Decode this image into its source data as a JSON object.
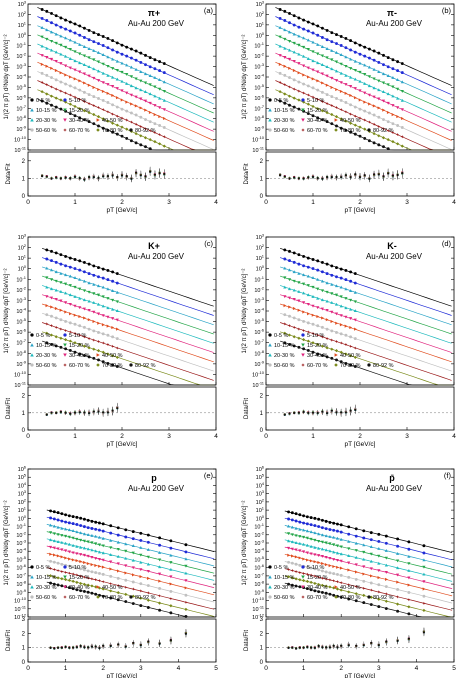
{
  "figure": {
    "colors": [
      "#000000",
      "#1f2bd6",
      "#2aa3c6",
      "#23a548",
      "#1fb9bd",
      "#e0257e",
      "#e04d1f",
      "#c0c0c0",
      "#9a1a1a",
      "#7a8a1a",
      "#111111"
    ],
    "legend": [
      "0-5 %",
      "5-10 %",
      "10-15 %",
      "15-20 %",
      "20-30 %",
      "30-40 %",
      "40-50 %",
      "50-60 %",
      "60-70 %",
      "70-80 %",
      "80-92 %"
    ],
    "markers": [
      "circle",
      "circle",
      "triangle-up",
      "triangle-down",
      "triangle-up",
      "triangle-down",
      "triangle-right",
      "circle",
      "star",
      "diamond",
      "circle"
    ],
    "system": "Au-Au 200 GeV",
    "ylabel_top": "1/(2 π pT) d²N/dy dpT [GeV/c]⁻²",
    "ylabel_bottom": "Data/Fit",
    "xlabel": "pT [GeV/c]"
  },
  "chart_data": [
    {
      "type": "scatter",
      "panel": "(a)",
      "particle": "π+",
      "ylog": true,
      "ylim": [
        1e-11,
        1000.0
      ],
      "xlim": [
        0,
        4
      ],
      "ratio_ylim": [
        0,
        2.5
      ],
      "series_template": "centrality",
      "x": [
        0.3,
        0.4,
        0.5,
        0.6,
        0.7,
        0.8,
        0.9,
        1.0,
        1.1,
        1.2,
        1.3,
        1.4,
        1.5,
        1.6,
        1.7,
        1.8,
        1.9,
        2.0,
        2.1,
        2.2,
        2.3,
        2.4,
        2.5,
        2.6,
        2.7,
        2.8,
        2.9
      ],
      "y0_top": 300,
      "slope": -4.4,
      "step": 3.0,
      "ratio": [
        1.15,
        1.1,
        1.0,
        1.05,
        1.0,
        1.05,
        1.0,
        1.1,
        1.0,
        0.95,
        1.05,
        1.1,
        1.0,
        1.15,
        1.1,
        1.2,
        1.05,
        1.2,
        1.1,
        1.0,
        1.3,
        1.2,
        1.1,
        1.4,
        1.2,
        1.3,
        1.25
      ]
    },
    {
      "type": "scatter",
      "panel": "(b)",
      "particle": "π-",
      "ylog": true,
      "ylim": [
        1e-11,
        1000.0
      ],
      "xlim": [
        0,
        4
      ],
      "ratio_ylim": [
        0,
        2.5
      ],
      "x": [
        0.3,
        0.4,
        0.5,
        0.6,
        0.7,
        0.8,
        0.9,
        1.0,
        1.1,
        1.2,
        1.3,
        1.4,
        1.5,
        1.6,
        1.7,
        1.8,
        1.9,
        2.0,
        2.1,
        2.2,
        2.3,
        2.4,
        2.5,
        2.6,
        2.7,
        2.8,
        2.9
      ],
      "y0_top": 300,
      "slope": -4.4,
      "step": 3.0,
      "ratio": [
        1.2,
        1.1,
        1.0,
        1.05,
        1.0,
        1.0,
        1.05,
        1.1,
        1.0,
        1.0,
        1.05,
        1.1,
        1.05,
        1.1,
        1.15,
        1.1,
        1.2,
        1.1,
        1.15,
        1.0,
        1.2,
        1.25,
        1.1,
        1.3,
        1.15,
        1.2,
        1.3
      ]
    },
    {
      "type": "scatter",
      "panel": "(c)",
      "particle": "K+",
      "ylog": true,
      "ylim": [
        1e-11,
        1000.0
      ],
      "xlim": [
        0,
        4
      ],
      "ratio_ylim": [
        0,
        2.5
      ],
      "x": [
        0.4,
        0.5,
        0.6,
        0.7,
        0.8,
        0.9,
        1.0,
        1.1,
        1.2,
        1.3,
        1.4,
        1.5,
        1.6,
        1.7,
        1.8,
        1.9
      ],
      "y0_top": 60,
      "slope": -3.3,
      "step": 3.0,
      "ratio": [
        0.9,
        1.0,
        1.0,
        1.05,
        1.0,
        0.95,
        1.0,
        1.05,
        1.0,
        1.0,
        1.05,
        1.1,
        1.0,
        1.05,
        1.1,
        1.3
      ]
    },
    {
      "type": "scatter",
      "panel": "(d)",
      "particle": "K-",
      "ylog": true,
      "ylim": [
        1e-11,
        1000.0
      ],
      "xlim": [
        0,
        4
      ],
      "ratio_ylim": [
        0,
        2.5
      ],
      "x": [
        0.4,
        0.5,
        0.6,
        0.7,
        0.8,
        0.9,
        1.0,
        1.1,
        1.2,
        1.3,
        1.4,
        1.5,
        1.6,
        1.7,
        1.8,
        1.9
      ],
      "y0_top": 60,
      "slope": -3.3,
      "step": 3.0,
      "ratio": [
        0.9,
        0.95,
        1.0,
        1.0,
        1.05,
        1.0,
        1.0,
        1.0,
        1.05,
        1.0,
        1.1,
        1.05,
        1.0,
        1.05,
        1.1,
        1.2
      ]
    },
    {
      "type": "scatter",
      "panel": "(e)",
      "particle": "p",
      "ylog": true,
      "ylim": [
        1e-12,
        1000000.0
      ],
      "xlim": [
        0,
        5
      ],
      "ratio_ylim": [
        0,
        3
      ],
      "x": [
        0.6,
        0.7,
        0.8,
        0.9,
        1.0,
        1.1,
        1.2,
        1.3,
        1.4,
        1.5,
        1.6,
        1.7,
        1.8,
        1.9,
        2.0,
        2.2,
        2.4,
        2.6,
        2.8,
        3.0,
        3.2,
        3.5,
        3.8,
        4.2
      ],
      "y0_top": 8,
      "slope": -2.5,
      "step": 3.0,
      "ratio": [
        1.0,
        0.95,
        1.0,
        1.0,
        1.05,
        1.0,
        1.0,
        1.05,
        1.1,
        1.05,
        1.0,
        1.1,
        1.05,
        1.0,
        1.1,
        1.15,
        1.2,
        1.1,
        1.3,
        1.2,
        1.4,
        1.3,
        1.5,
        2.0
      ]
    },
    {
      "type": "scatter",
      "panel": "(f)",
      "particle": "p̄",
      "ylog": true,
      "ylim": [
        1e-12,
        1000000.0
      ],
      "xlim": [
        0,
        5
      ],
      "ratio_ylim": [
        0,
        3
      ],
      "x": [
        0.6,
        0.7,
        0.8,
        0.9,
        1.0,
        1.1,
        1.2,
        1.3,
        1.4,
        1.5,
        1.6,
        1.7,
        1.8,
        1.9,
        2.0,
        2.2,
        2.4,
        2.6,
        2.8,
        3.0,
        3.2,
        3.5,
        3.8,
        4.2
      ],
      "y0_top": 6,
      "slope": -2.5,
      "step": 3.0,
      "ratio": [
        1.0,
        1.0,
        0.95,
        1.0,
        1.0,
        1.05,
        1.0,
        1.0,
        1.1,
        1.05,
        1.0,
        1.05,
        1.1,
        1.05,
        1.1,
        1.2,
        1.1,
        1.2,
        1.3,
        1.2,
        1.4,
        1.5,
        1.6,
        2.1
      ]
    }
  ]
}
